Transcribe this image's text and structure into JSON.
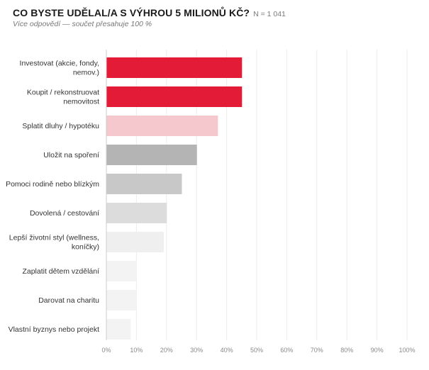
{
  "title": "CO BYSTE UDĚLAL/A S VÝHROU 5 MILIONŮ KČ?",
  "n_label": "N = 1 041",
  "subtitle": "Více odpovědí — součet přesahuje 100 %",
  "chart_data": {
    "type": "bar",
    "orientation": "horizontal",
    "title": "CO BYSTE UDĚLAL/A S VÝHROU 5 MILIONŮ KČ?",
    "subtitle": "Více odpovědí — součet přesahuje 100 %",
    "categories": [
      [
        "Investovat (akcie, fondy,",
        "nemov.)"
      ],
      [
        "Koupit / rekonstruovat",
        "nemovitost"
      ],
      [
        "Splatit dluhy / hypotéku"
      ],
      [
        "Uložit na spoření"
      ],
      [
        "Pomoci rodině nebo blízkým"
      ],
      [
        "Dovolená / cestování"
      ],
      [
        "Lepší životní styl (wellness,",
        "koníčky)"
      ],
      [
        "Zaplatit dětem vzdělání"
      ],
      [
        "Darovat na charitu"
      ],
      [
        "Vlastní byznys nebo projekt"
      ]
    ],
    "values": [
      45,
      45,
      37,
      30,
      25,
      20,
      19,
      10,
      10,
      8
    ],
    "colors": [
      "#e31b36",
      "#e31b36",
      "#f5c8cd",
      "#b4b4b4",
      "#c8c8c8",
      "#dcdcdc",
      "#efefef",
      "#f3f3f3",
      "#f3f3f3",
      "#f3f3f3"
    ],
    "xlim": [
      0,
      100
    ],
    "xticks": [
      "0%",
      "10%",
      "20%",
      "30%",
      "40%",
      "50%",
      "60%",
      "70%",
      "80%",
      "90%",
      "100%"
    ],
    "grid": true
  }
}
